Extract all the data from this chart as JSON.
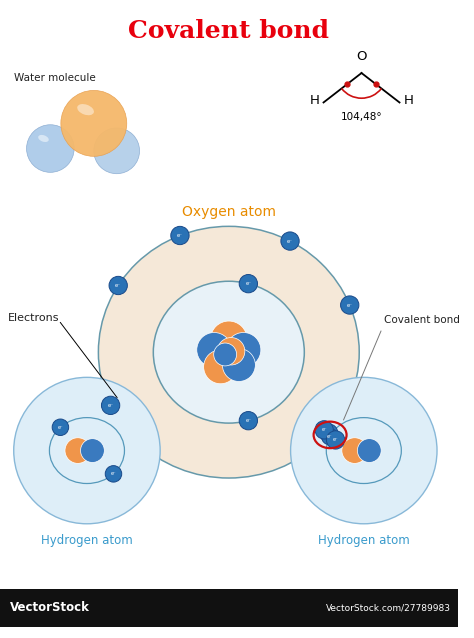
{
  "title": "Covalent bond",
  "title_color": "#e8000d",
  "title_fontsize": 18,
  "bg_color": "#ffffff",
  "water_molecule_label": "Water molecule",
  "oxygen_atom_label": "Oxygen atom",
  "hydrogen_atom_label_left": "Hydrogen atom",
  "hydrogen_atom_label_right": "Hydrogen atom",
  "electrons_label": "Electrons",
  "covalent_bond_label": "Covalent bond",
  "angle_label": "104,48°",
  "h_label": "H",
  "o_label": "O",
  "label_color_blue": "#3a9bcc",
  "label_color_black": "#222222",
  "electron_color": "#2a72b5",
  "electron_edge_color": "#1a4a8a",
  "nucleus_orange": "#f0954a",
  "nucleus_blue": "#3a7abf",
  "orbit_color": "#5599bb",
  "orbit_linewidth": 1.2,
  "vectorstock_bg": "#111111",
  "vectorstock_text": "VectorStock",
  "vectorstock_url": "VectorStock.com/27789983"
}
